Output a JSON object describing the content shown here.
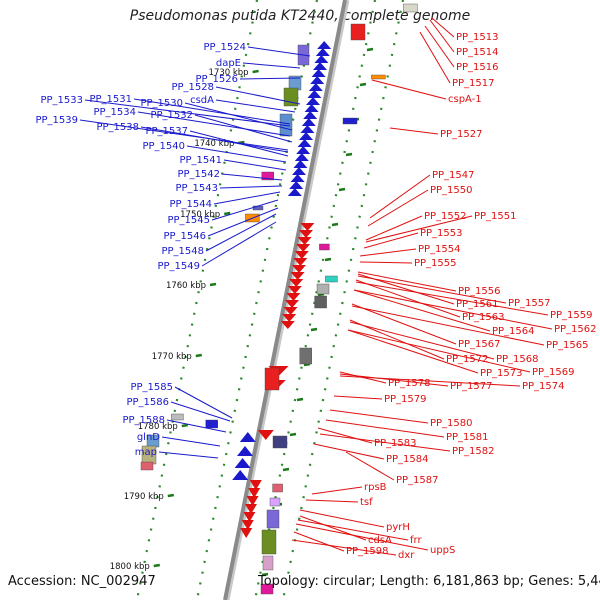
{
  "title": "Pseudomonas putida KT2440, complete genome",
  "footer": {
    "accession": "Accession: NC_002947",
    "info": "Topology: circular; Length: 6,181,863 bp; Genes: 5,446"
  },
  "colors": {
    "forward": "#1a1acc",
    "reverse": "#e01010",
    "backbone": "#8a8a8a",
    "tick": "#1a7a1a"
  },
  "ticks": [
    "1730 kbp",
    "1740 kbp",
    "1750 kbp",
    "1760 kbp",
    "1770 kbp",
    "1780 kbp",
    "1790 kbp",
    "1800 kbp"
  ],
  "forward_labels": [
    "PP_1524",
    "dapE",
    "PP_1526",
    "PP_1528",
    "PP_1533",
    "PP_1531",
    "csdA",
    "PP_1530",
    "PP_1534",
    "PP_1532",
    "PP_1539",
    "PP_1538",
    "PP_1537",
    "PP_1540",
    "PP_1541",
    "PP_1542",
    "PP_1543",
    "PP_1544",
    "PP_1545",
    "PP_1546",
    "PP_1548",
    "PP_1549",
    "PP_1585",
    "PP_1586",
    "PP_1588",
    "glnD",
    "map"
  ],
  "reverse_labels": [
    "PP_1513",
    "PP_1514",
    "PP_1516",
    "PP_1517",
    "cspA-1",
    "PP_1527",
    "PP_1547",
    "PP_1550",
    "PP_1552",
    "PP_1551",
    "PP_1553",
    "PP_1554",
    "PP_1555",
    "PP_1556",
    "PP_1561",
    "PP_1557",
    "PP_1563",
    "PP_1559",
    "PP_1564",
    "PP_1562",
    "PP_1567",
    "PP_1565",
    "PP_1572",
    "PP_1568",
    "PP_1573",
    "PP_1569",
    "PP_1578",
    "PP_1577",
    "PP_1574",
    "PP_1579",
    "PP_1580",
    "PP_1581",
    "PP_1583",
    "PP_1582",
    "PP_1584",
    "PP_1587",
    "rpsB",
    "tsf",
    "pyrH",
    "cdsA",
    "frr",
    "uppS",
    "PP_1598",
    "dxr"
  ]
}
